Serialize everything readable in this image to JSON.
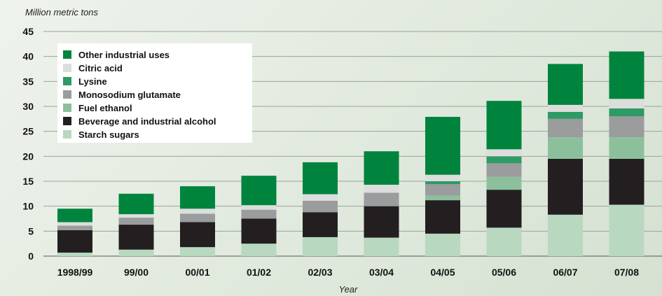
{
  "chart_data": {
    "type": "bar",
    "stacked": true,
    "title": "",
    "ylabel": "Million metric tons",
    "xlabel": "Year",
    "ylim": [
      0,
      45
    ],
    "yticks": [
      0,
      5,
      10,
      15,
      20,
      25,
      30,
      35,
      40,
      45
    ],
    "grid": true,
    "legend_position": "top-left",
    "categories": [
      "1998/99",
      "99/00",
      "00/01",
      "01/02",
      "02/03",
      "03/04",
      "04/05",
      "05/06",
      "06/07",
      "07/08"
    ],
    "series": [
      {
        "name": "Starch sugars",
        "color": "#b8d8c0",
        "values": [
          0.7,
          1.3,
          1.8,
          2.5,
          3.8,
          3.7,
          4.5,
          5.7,
          8.3,
          10.3
        ]
      },
      {
        "name": "Beverage and industrial alcohol",
        "color": "#231f20",
        "values": [
          4.5,
          5.0,
          5.0,
          5.0,
          5.0,
          6.3,
          6.7,
          7.6,
          11.2,
          9.2
        ]
      },
      {
        "name": "Fuel ethanol",
        "color": "#8cc09c",
        "values": [
          0,
          0,
          0,
          0,
          0,
          0,
          0.9,
          2.6,
          4.3,
          4.3
        ]
      },
      {
        "name": "Monosodium glutamate",
        "color": "#9a9c9e",
        "values": [
          0.9,
          1.4,
          1.7,
          1.8,
          2.3,
          2.7,
          2.3,
          2.7,
          3.7,
          4.2
        ]
      },
      {
        "name": "Lysine",
        "color": "#2e9a64",
        "values": [
          0,
          0,
          0,
          0,
          0,
          0,
          0.6,
          1.4,
          1.4,
          1.6
        ]
      },
      {
        "name": "Citric acid",
        "color": "#dcdedd",
        "values": [
          0.7,
          0.7,
          1.0,
          0.9,
          1.3,
          1.6,
          1.3,
          1.4,
          1.4,
          1.9
        ]
      },
      {
        "name": "Other industrial uses",
        "color": "#00843d",
        "values": [
          2.7,
          4.1,
          4.5,
          5.9,
          6.4,
          6.7,
          11.6,
          9.7,
          8.2,
          9.5
        ]
      }
    ],
    "legend_order": [
      "Other industrial uses",
      "Citric acid",
      "Lysine",
      "Monosodium glutamate",
      "Fuel ethanol",
      "Beverage and industrial alcohol",
      "Starch sugars"
    ]
  }
}
